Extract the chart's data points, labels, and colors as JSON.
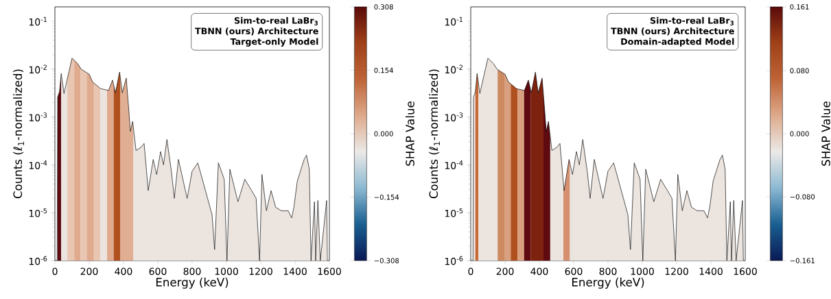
{
  "chart_data": [
    {
      "type": "line",
      "xlabel": "Energy (keV)",
      "ylabel": "Counts (ℓ$_{1}$-normalized)",
      "clabel": "SHAP Value",
      "log": "y",
      "annotations": [
        "Sim-to-real LaBr$_{3}$",
        "TBNN (ours) Architecture",
        "Target-only Model"
      ],
      "xlim": [
        0,
        1600
      ],
      "ylim": [
        1e-06,
        0.2
      ],
      "xticks": [
        0,
        200,
        400,
        600,
        800,
        1000,
        1200,
        1400,
        1600
      ],
      "yticks": [
        {
          "value": 1e-06,
          "label": "10$^{-6}$"
        },
        {
          "value": 1e-05,
          "label": "10$^{-5}$"
        },
        {
          "value": 0.0001,
          "label": "10$^{-4}$"
        },
        {
          "value": 0.001,
          "label": "10$^{-3}$"
        },
        {
          "value": 0.01,
          "label": "10$^{-2}$"
        },
        {
          "value": 0.1,
          "label": "10$^{-1}$"
        }
      ],
      "clim": [
        -0.308,
        0.308
      ],
      "cticks": [
        {
          "value": -0.308,
          "label": "−0.308"
        },
        {
          "value": -0.154,
          "label": "−0.154"
        },
        {
          "value": 0,
          "label": "0.000"
        },
        {
          "value": 0.154,
          "label": "0.154"
        },
        {
          "value": 0.308,
          "label": "0.308"
        }
      ],
      "bands": [
        {
          "axis": "x",
          "from": 0,
          "to": 1600,
          "color": "#ebe4df"
        },
        {
          "axis": "x",
          "from": 16,
          "to": 36,
          "color": "#5e0c12"
        },
        {
          "axis": "x",
          "from": 73,
          "to": 113,
          "color": "#e8c6b2"
        },
        {
          "axis": "x",
          "from": 113,
          "to": 149,
          "color": "#dfaa8e"
        },
        {
          "axis": "x",
          "from": 149,
          "to": 187,
          "color": "#e8c6b2"
        },
        {
          "axis": "x",
          "from": 187,
          "to": 227,
          "color": "#dfaa8e"
        },
        {
          "axis": "x",
          "from": 227,
          "to": 264,
          "color": "#e8c6b2"
        },
        {
          "axis": "x",
          "from": 304,
          "to": 343,
          "color": "#dfaa8e"
        },
        {
          "axis": "x",
          "from": 343,
          "to": 380,
          "color": "#b0501f"
        },
        {
          "axis": "x",
          "from": 380,
          "to": 456,
          "color": "#e0ae92"
        }
      ],
      "series": [
        {
          "color": "#000000",
          "x": [
            13,
            16,
            27,
            37,
            53,
            100,
            133,
            153,
            200,
            220,
            267,
            313,
            336,
            353,
            377,
            393,
            416,
            429,
            440,
            453,
            473,
            500,
            520,
            544,
            573,
            593,
            616,
            633,
            653,
            680,
            696,
            720,
            771,
            800,
            833,
            867,
            916,
            931,
            953,
            987,
            1003,
            1020,
            1067,
            1107,
            1147,
            1173,
            1193,
            1207,
            1233,
            1260,
            1287,
            1320,
            1360,
            1380,
            1393,
            1413,
            1433,
            1453,
            1467,
            1483,
            1493,
            1513,
            1520,
            1533,
            1547,
            1584,
            1589
          ],
          "values": [
            1e-06,
            0.0026,
            0.0034,
            0.0081,
            0.0031,
            0.017,
            0.013,
            0.01,
            0.0078,
            0.0054,
            0.0039,
            0.0036,
            0.0059,
            0.0032,
            0.0087,
            0.0032,
            0.0065,
            0.0017,
            0.0005,
            0.00081,
            0.0002,
            0.00023,
            0.00028,
            2.9e-05,
            0.00013,
            6.3e-05,
            0.00019,
            0.0001,
            0.00034,
            6.9e-05,
            2e-05,
            0.00013,
            2e-05,
            7.4e-05,
            0.00011,
            4e-05,
            9.1e-06,
            1.7e-06,
            0.00011,
            5e-05,
            1e-06,
            8.1e-05,
            1.7e-05,
            5e-05,
            2.9e-05,
            2e-05,
            1e-06,
            6.3e-05,
            1.1e-05,
            2.9e-05,
            1.3e-05,
            1.1e-05,
            1.1e-05,
            7.8e-06,
            1.3e-05,
            4.6e-05,
            7.8e-05,
            0.00013,
            0.00016,
            8.1e-05,
            1e-06,
            1.7e-05,
            1e-06,
            1.8e-05,
            1e-06,
            1.8e-05,
            1e-06
          ]
        }
      ]
    },
    {
      "type": "line",
      "xlabel": "Energy (keV)",
      "ylabel": "Counts (ℓ$_{1}$-normalized)",
      "clabel": "SHAP Value",
      "log": "y",
      "annotations": [
        "Sim-to-real LaBr$_{3}$",
        "TBNN (ours) Architecture",
        "Domain-adapted Model"
      ],
      "xlim": [
        0,
        1600
      ],
      "ylim": [
        1e-06,
        0.2
      ],
      "xticks": [
        0,
        200,
        400,
        600,
        800,
        1000,
        1200,
        1400,
        1600
      ],
      "yticks": [
        {
          "value": 1e-06,
          "label": "10$^{-6}$"
        },
        {
          "value": 1e-05,
          "label": "10$^{-5}$"
        },
        {
          "value": 0.0001,
          "label": "10$^{-4}$"
        },
        {
          "value": 0.001,
          "label": "10$^{-3}$"
        },
        {
          "value": 0.01,
          "label": "10$^{-2}$"
        },
        {
          "value": 0.1,
          "label": "10$^{-1}$"
        }
      ],
      "clim": [
        -0.161,
        0.161
      ],
      "cticks": [
        {
          "value": -0.161,
          "label": "−0.161"
        },
        {
          "value": -0.08,
          "label": "−0.080"
        },
        {
          "value": 0,
          "label": "0.000"
        },
        {
          "value": 0.08,
          "label": "0.080"
        },
        {
          "value": 0.161,
          "label": "0.161"
        }
      ],
      "bands": [
        {
          "axis": "x",
          "from": 0,
          "to": 1600,
          "color": "#ebe4df"
        },
        {
          "axis": "x",
          "from": 27,
          "to": 44,
          "color": "#c86a38"
        },
        {
          "axis": "x",
          "from": 157,
          "to": 196,
          "color": "#cd8a60"
        },
        {
          "axis": "x",
          "from": 196,
          "to": 233,
          "color": "#d9a080"
        },
        {
          "axis": "x",
          "from": 233,
          "to": 273,
          "color": "#b0501f"
        },
        {
          "axis": "x",
          "from": 273,
          "to": 311,
          "color": "#d9a080"
        },
        {
          "axis": "x",
          "from": 311,
          "to": 349,
          "color": "#5e0a10"
        },
        {
          "axis": "x",
          "from": 349,
          "to": 424,
          "color": "#7e2210"
        },
        {
          "axis": "x",
          "from": 424,
          "to": 463,
          "color": "#5e0a10"
        },
        {
          "axis": "x",
          "from": 540,
          "to": 577,
          "color": "#d69070"
        }
      ],
      "series": [
        {
          "color": "#000000",
          "x": [
            13,
            16,
            27,
            37,
            53,
            100,
            133,
            153,
            200,
            220,
            267,
            313,
            336,
            353,
            377,
            393,
            416,
            429,
            440,
            453,
            473,
            500,
            520,
            544,
            573,
            593,
            616,
            633,
            653,
            680,
            696,
            720,
            771,
            800,
            833,
            867,
            916,
            931,
            953,
            987,
            1003,
            1020,
            1067,
            1107,
            1147,
            1173,
            1193,
            1207,
            1233,
            1260,
            1287,
            1320,
            1360,
            1380,
            1393,
            1413,
            1433,
            1453,
            1467,
            1483,
            1493,
            1513,
            1520,
            1533,
            1547,
            1584,
            1589
          ],
          "values": [
            1e-06,
            0.0026,
            0.0034,
            0.0081,
            0.0031,
            0.017,
            0.013,
            0.01,
            0.0078,
            0.0054,
            0.0039,
            0.0036,
            0.0059,
            0.0032,
            0.0087,
            0.0032,
            0.0065,
            0.0017,
            0.0005,
            0.00081,
            0.0002,
            0.00023,
            0.00028,
            2.9e-05,
            0.00013,
            6.3e-05,
            0.00019,
            0.0001,
            0.00034,
            6.9e-05,
            2e-05,
            0.00013,
            2e-05,
            7.4e-05,
            0.00011,
            4e-05,
            9.1e-06,
            1.7e-06,
            0.00011,
            5e-05,
            1e-06,
            8.1e-05,
            1.7e-05,
            5e-05,
            2.9e-05,
            2e-05,
            1e-06,
            6.3e-05,
            1.1e-05,
            2.9e-05,
            1.3e-05,
            1.1e-05,
            1.1e-05,
            7.8e-06,
            1.3e-05,
            4.6e-05,
            7.8e-05,
            0.00013,
            0.00016,
            8.1e-05,
            1e-06,
            1.7e-05,
            1e-06,
            1.8e-05,
            1e-06,
            1.8e-05,
            1e-06
          ]
        }
      ]
    }
  ]
}
